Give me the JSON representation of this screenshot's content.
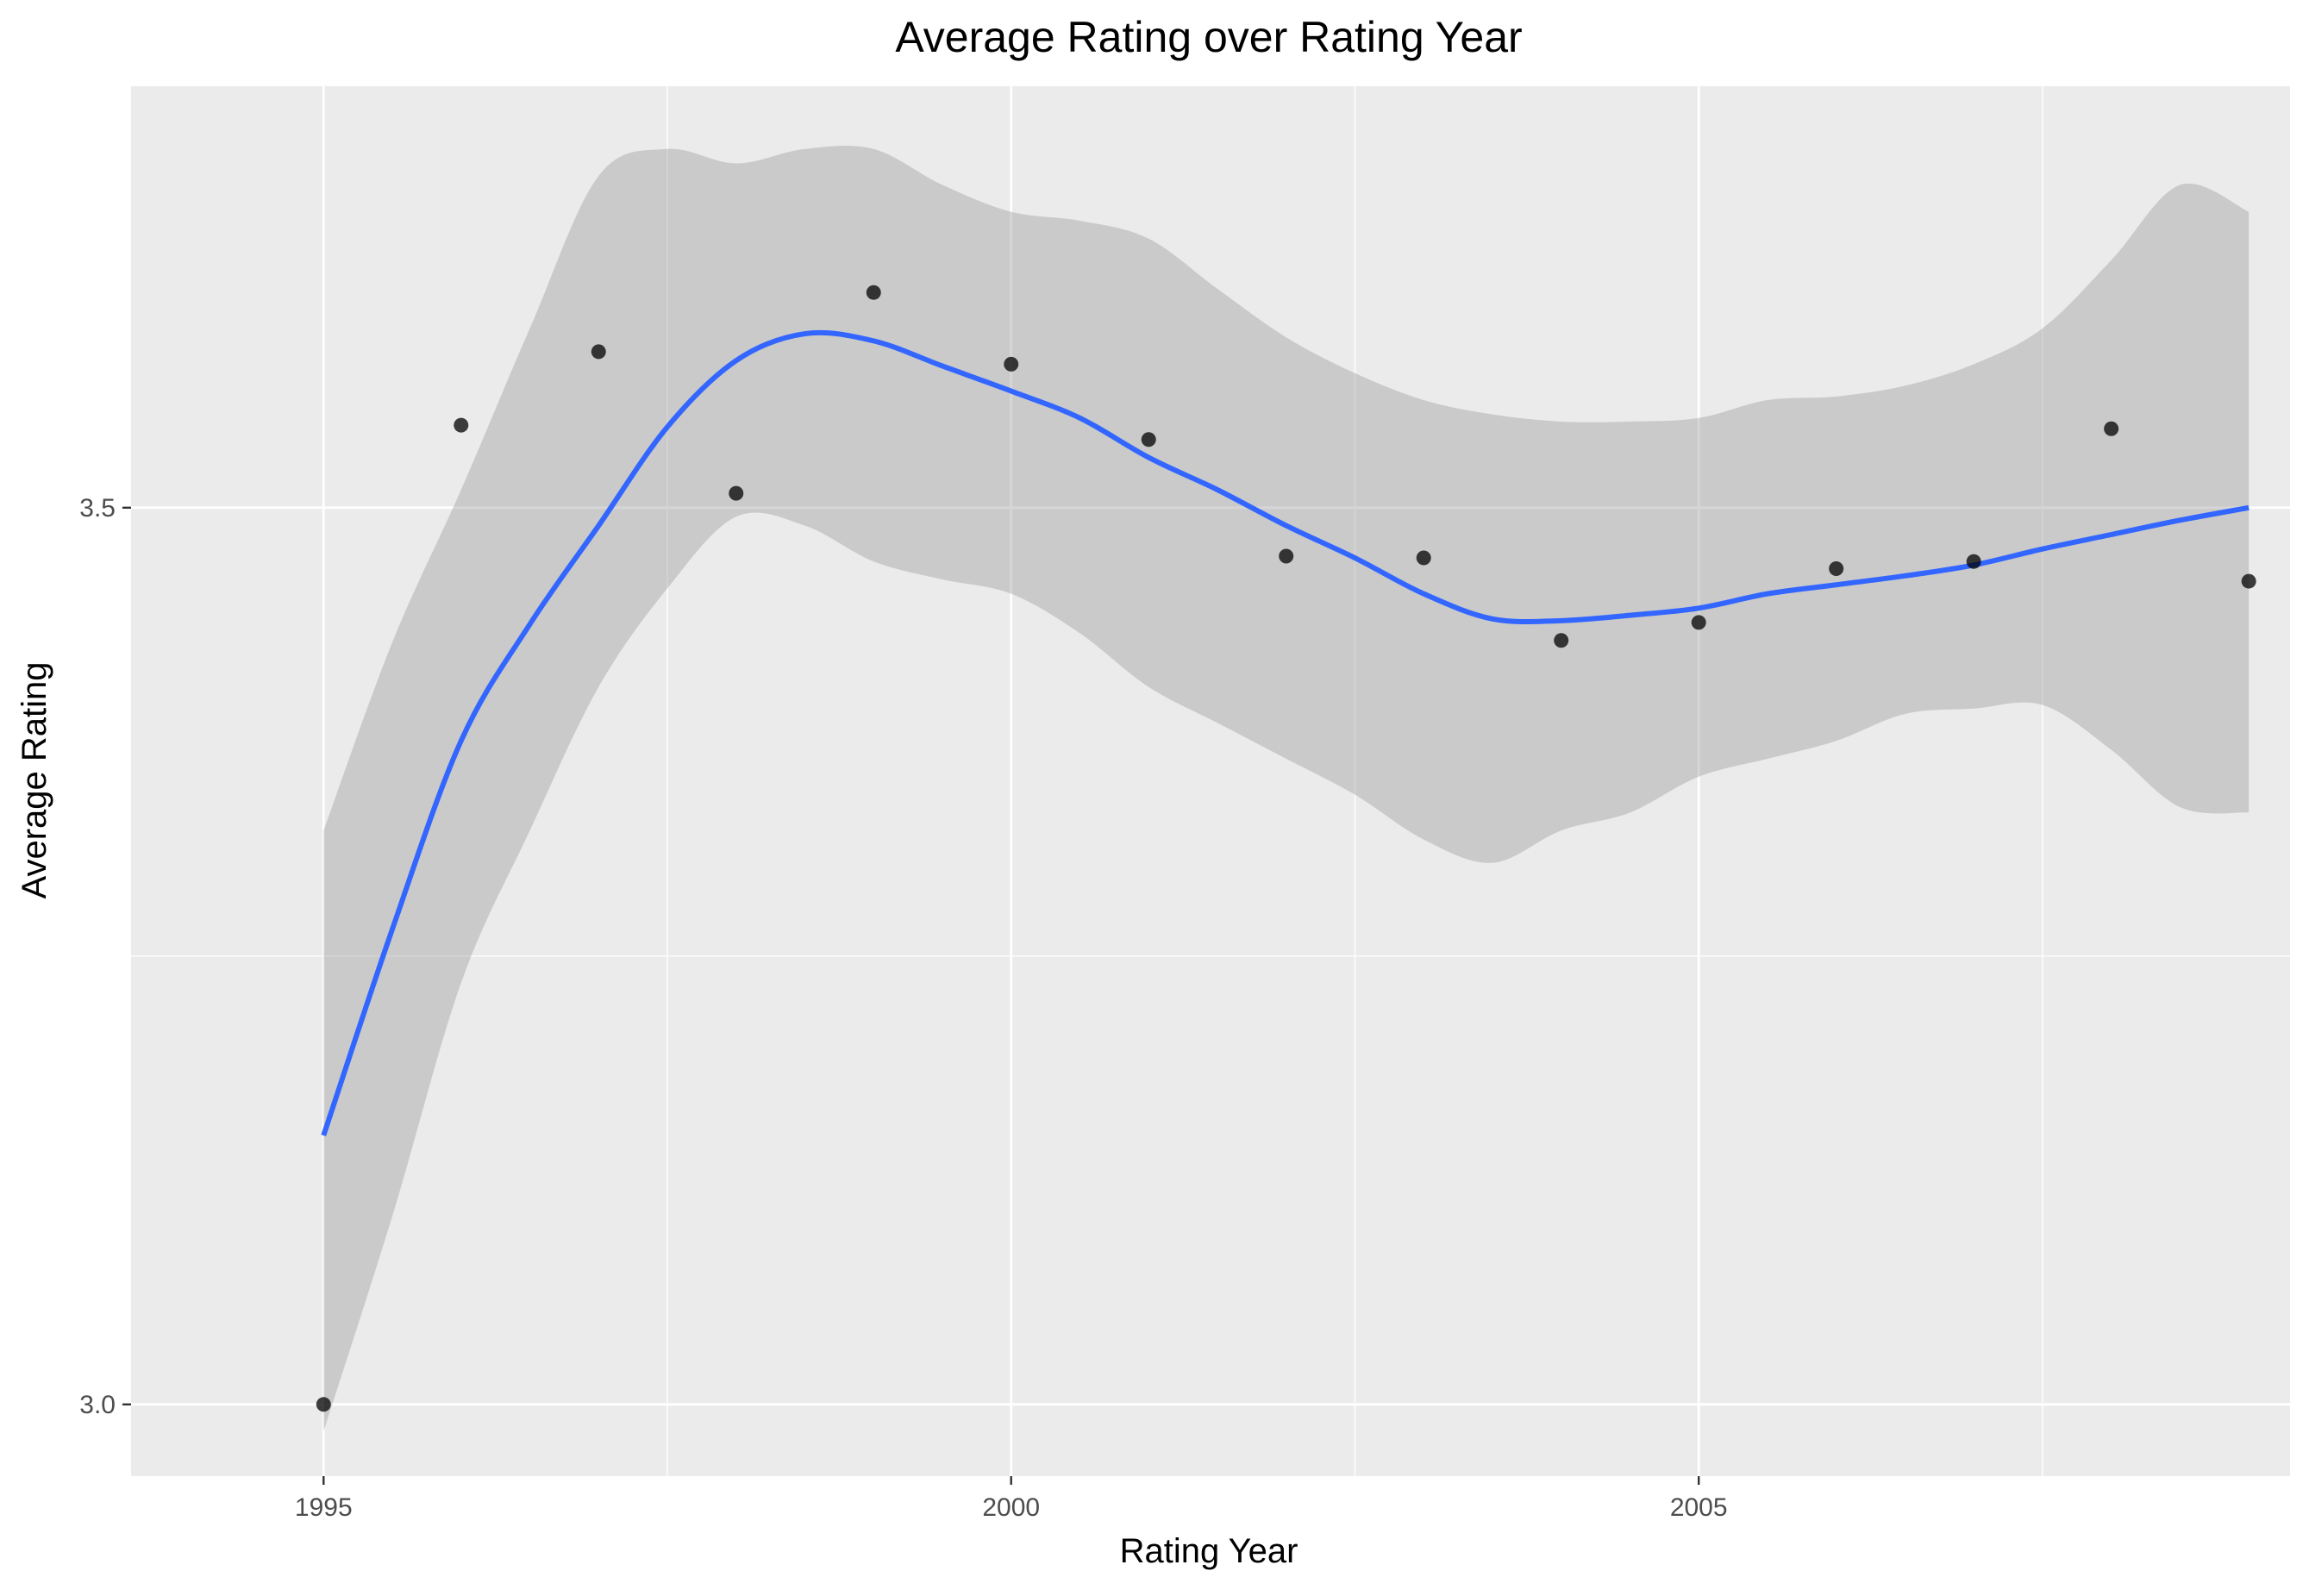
{
  "chart_data": {
    "type": "scatter",
    "title": "Average Rating over Rating Year",
    "xlabel": "Rating Year",
    "ylabel": "Average Rating",
    "xlim": [
      1993.6,
      2009.3
    ],
    "ylim": [
      2.96,
      3.735
    ],
    "x_ticks": [
      "1995",
      "2000",
      "2005"
    ],
    "x_tick_values": [
      1995,
      2000,
      2005
    ],
    "x_minor_gridlines": [
      1997.5,
      2002.5,
      2007.5
    ],
    "y_ticks": [
      "3.0",
      "3.5"
    ],
    "y_tick_values": [
      3.0,
      3.5
    ],
    "y_minor_gridlines": [
      3.25
    ],
    "grid": true,
    "legend": "none",
    "colors": {
      "panel_background": "#ebebeb",
      "gridline": "#ffffff",
      "points": "#000000",
      "smooth_line": "#3366ff",
      "confidence_band": "#999999"
    },
    "points": {
      "x": [
        1995,
        1996,
        1997,
        1998,
        1999,
        2000,
        2001,
        2002,
        2003,
        2004,
        2005,
        2006,
        2007,
        2008,
        2009
      ],
      "y": [
        3.0,
        3.546,
        3.587,
        3.508,
        3.62,
        3.58,
        3.538,
        3.473,
        3.472,
        3.426,
        3.436,
        3.466,
        3.47,
        3.544,
        3.459
      ]
    },
    "smooth": {
      "method": "loess",
      "x": [
        1995,
        1995.5,
        1996,
        1996.5,
        1997,
        1997.5,
        1998,
        1998.5,
        1999,
        1999.5,
        2000,
        2000.5,
        2001,
        2001.5,
        2002,
        2002.5,
        2003,
        2003.5,
        2004,
        2004.5,
        2005,
        2005.5,
        2006,
        2006.5,
        2007,
        2007.5,
        2008,
        2008.5,
        2009
      ],
      "y": [
        3.15,
        3.265,
        3.37,
        3.435,
        3.49,
        3.545,
        3.582,
        3.597,
        3.593,
        3.579,
        3.565,
        3.55,
        3.528,
        3.51,
        3.49,
        3.472,
        3.452,
        3.438,
        3.437,
        3.44,
        3.444,
        3.452,
        3.457,
        3.462,
        3.468,
        3.477,
        3.485,
        3.493,
        3.5
      ],
      "lower": [
        2.985,
        3.105,
        3.235,
        3.32,
        3.4,
        3.455,
        3.495,
        3.49,
        3.47,
        3.46,
        3.452,
        3.43,
        3.4,
        3.38,
        3.36,
        3.34,
        3.315,
        3.302,
        3.32,
        3.33,
        3.35,
        3.36,
        3.37,
        3.385,
        3.388,
        3.39,
        3.365,
        3.333,
        3.33
      ],
      "upper": [
        3.32,
        3.425,
        3.51,
        3.6,
        3.685,
        3.7,
        3.692,
        3.7,
        3.7,
        3.68,
        3.665,
        3.66,
        3.65,
        3.622,
        3.595,
        3.575,
        3.56,
        3.552,
        3.548,
        3.548,
        3.55,
        3.56,
        3.562,
        3.568,
        3.58,
        3.6,
        3.638,
        3.68,
        3.665
      ]
    }
  }
}
